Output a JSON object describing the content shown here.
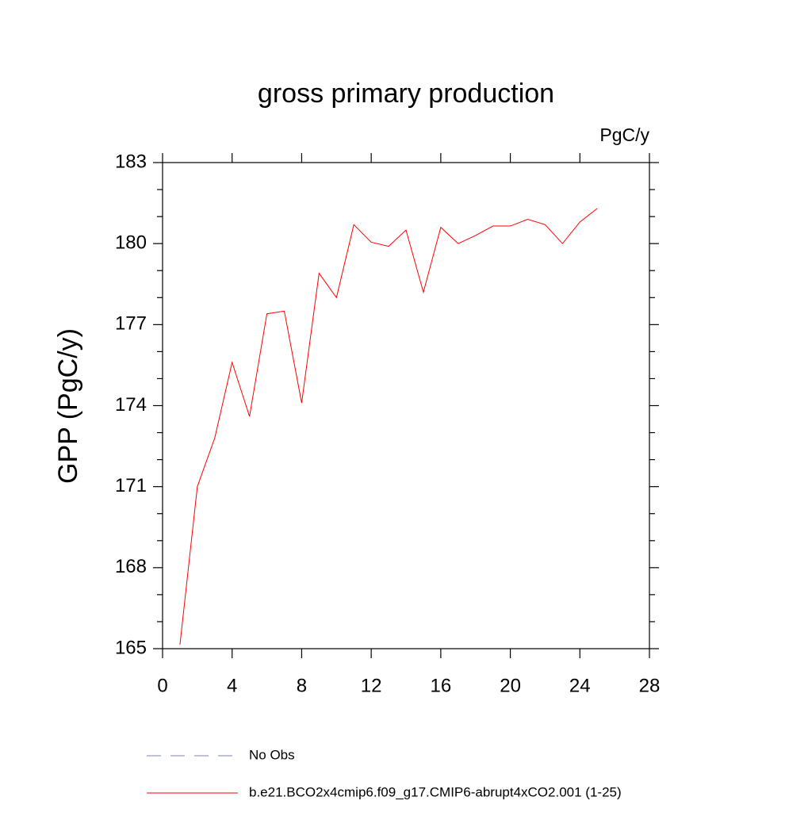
{
  "chart_data": {
    "type": "line",
    "title": "gross primary production",
    "units_label": "PgC/y",
    "ylabel": "GPP  (PgC/y)",
    "x": [
      1,
      2,
      3,
      4,
      5,
      6,
      7,
      8,
      9,
      10,
      11,
      12,
      13,
      14,
      15,
      16,
      17,
      18,
      19,
      20,
      21,
      22,
      23,
      24,
      25
    ],
    "series": [
      {
        "name": "No Obs",
        "color": "#8080c0",
        "dashed": true,
        "values": [
          null,
          null,
          null,
          null,
          null,
          null,
          null,
          null,
          null,
          null,
          null,
          null,
          null,
          null,
          null,
          null,
          null,
          null,
          null,
          null,
          null,
          null,
          null,
          null,
          null
        ]
      },
      {
        "name": "b.e21.BCO2x4cmip6.f09_g17.CMIP6-abrupt4xCO2.001 (1-25)",
        "color": "#ff0000",
        "dashed": false,
        "values": [
          165.15,
          171.0,
          172.8,
          175.6,
          173.6,
          177.4,
          177.5,
          174.1,
          178.9,
          178.0,
          180.7,
          180.05,
          179.9,
          180.5,
          178.2,
          180.6,
          180.0,
          180.3,
          180.65,
          180.65,
          180.9,
          180.7,
          180.0,
          180.8,
          181.3
        ]
      }
    ],
    "xlim": [
      0,
      28
    ],
    "xticks": [
      0,
      4,
      8,
      12,
      16,
      20,
      24,
      28
    ],
    "ylim": [
      165,
      183
    ],
    "yticks": [
      165,
      168,
      171,
      174,
      177,
      180,
      183
    ],
    "yminorticks": [
      166,
      167,
      169,
      170,
      172,
      173,
      175,
      176,
      178,
      179,
      181,
      182
    ]
  }
}
